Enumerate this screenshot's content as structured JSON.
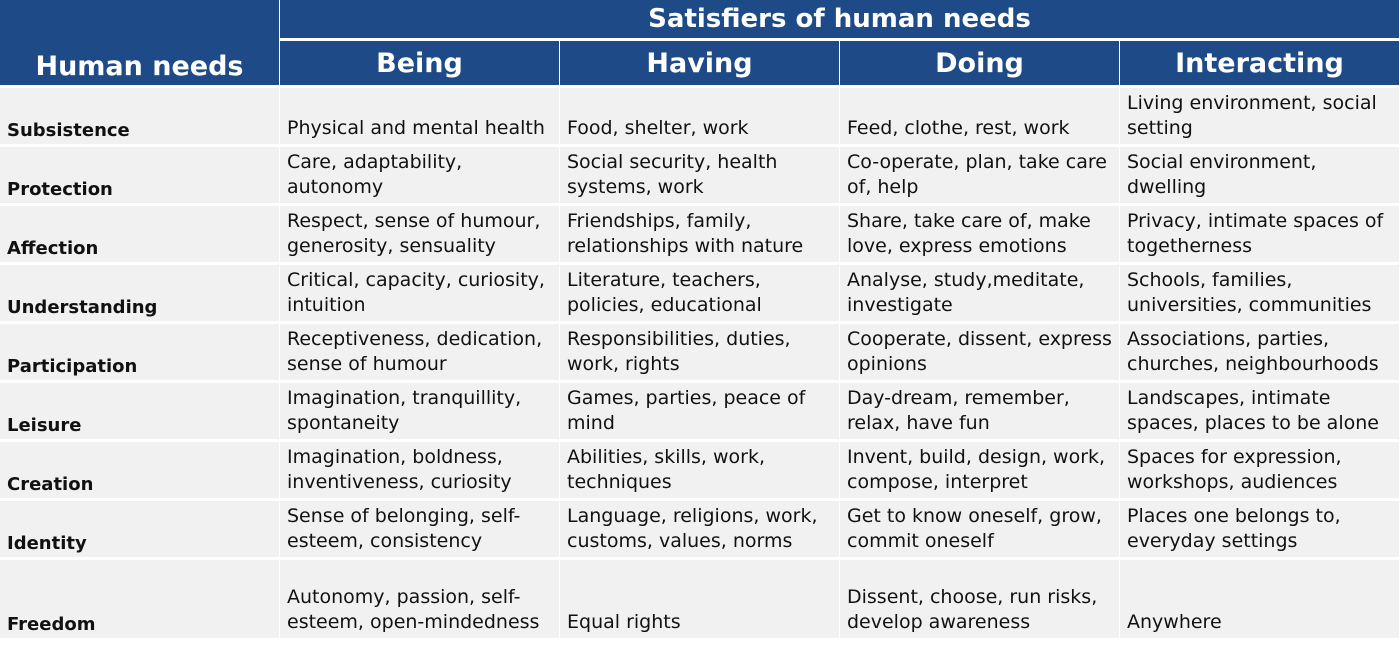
{
  "header": {
    "need_label": "Human needs",
    "satisfiers_label": "Satisfiers of human needs",
    "columns": [
      "Being",
      "Having",
      "Doing",
      "Interacting"
    ]
  },
  "rows": [
    {
      "need": "Subsistence",
      "cells": [
        "Physical and mental health",
        "Food, shelter, work",
        "Feed, clothe, rest, work",
        "Living environment, social setting"
      ]
    },
    {
      "need": "Protection",
      "cells": [
        "Care, adaptability, autonomy",
        "Social security, health systems, work",
        "Co-operate, plan, take care of, help",
        "Social environment, dwelling"
      ]
    },
    {
      "need": "Affection",
      "cells": [
        "Respect, sense of humour, generosity, sensuality",
        "Friendships, family, relationships with nature",
        "Share, take care of, make love, express emotions",
        "Privacy, intimate spaces of togetherness"
      ]
    },
    {
      "need": "Understanding",
      "cells": [
        "Critical, capacity, curiosity, intuition",
        "Literature, teachers, policies, educational",
        "Analyse, study,meditate, investigate",
        "Schools, families, universities, communities"
      ]
    },
    {
      "need": "Participation",
      "cells": [
        "Receptiveness, dedication, sense of humour",
        "Responsibilities, duties, work, rights",
        "Cooperate, dissent, express opinions",
        "Associations, parties, churches, neighbourhoods"
      ]
    },
    {
      "need": "Leisure",
      "cells": [
        "Imagination, tranquillity, spontaneity",
        "Games, parties, peace of mind",
        "Day-dream, remember, relax, have fun",
        "Landscapes, intimate spaces, places to be alone"
      ]
    },
    {
      "need": "Creation",
      "cells": [
        "Imagination, boldness, inventiveness, curiosity",
        "Abilities, skills, work, techniques",
        "Invent, build, design, work, compose, interpret",
        "Spaces for expression, workshops, audiences"
      ]
    },
    {
      "need": "Identity",
      "cells": [
        "Sense of belonging, self-esteem, consistency",
        "Language, religions, work, customs, values, norms",
        "Get to know oneself, grow, commit oneself",
        "Places one belongs to, everyday settings"
      ]
    },
    {
      "need": "Freedom",
      "cells": [
        "Autonomy, passion, self-esteem, open-mindedness",
        "Equal rights",
        "Dissent, choose, run risks, develop awareness",
        "Anywhere"
      ]
    }
  ]
}
